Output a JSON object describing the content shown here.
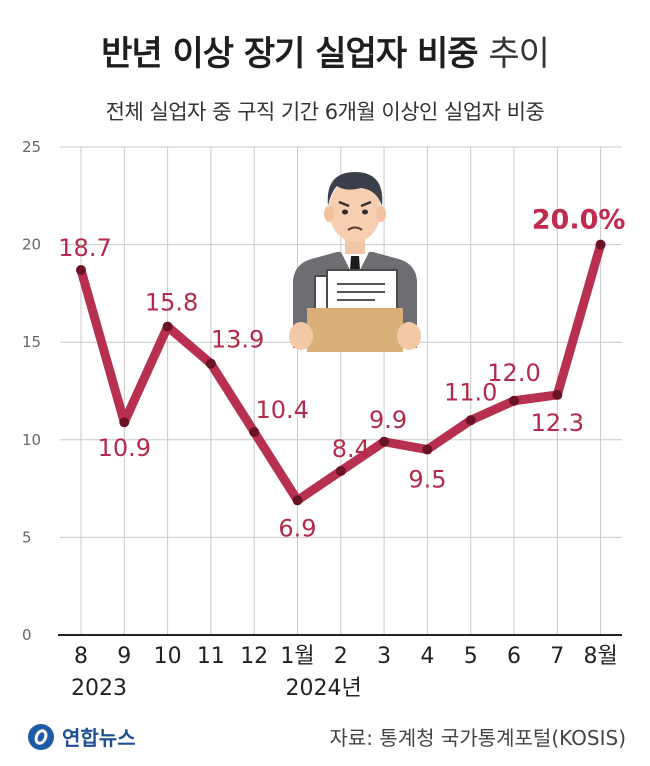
{
  "header": {
    "title_bold": "반년 이상 장기 실업자 비중",
    "title_light": "추이",
    "subtitle": "전체 실업자 중 구직 기간 6개월 이상인 실업자 비중"
  },
  "chart_data": {
    "type": "line",
    "title": "반년 이상 장기 실업자 비중 추이",
    "subtitle": "전체 실업자 중 구직 기간 6개월 이상인 실업자 비중",
    "categories": [
      "8",
      "9",
      "10",
      "11",
      "12",
      "1월",
      "2",
      "3",
      "4",
      "5",
      "6",
      "7",
      "8월"
    ],
    "year_labels": [
      "2023",
      "2024년"
    ],
    "series": [
      {
        "values": [
          18.7,
          10.9,
          15.8,
          13.9,
          10.4,
          6.9,
          8.4,
          9.9,
          9.5,
          11.0,
          12.0,
          12.3,
          20.0
        ],
        "labels": [
          "18.7",
          "10.9",
          "15.8",
          "13.9",
          "10.4",
          "6.9",
          "8.4",
          "9.9",
          "9.5",
          "11.0",
          "12.0",
          "12.3",
          "20.0%"
        ],
        "color": "#b8304f"
      }
    ],
    "yticks": [
      "0",
      "5",
      "10",
      "15",
      "20",
      "25"
    ],
    "ylim": [
      0,
      25
    ],
    "grid": true
  },
  "footer": {
    "logo_text": "연합뉴스",
    "source": "자료: 통계청 국가통계포털(KOSIS)"
  },
  "colors": {
    "line": "#b8304f",
    "marker": "#6a1325",
    "grid": "#c8c8c8"
  }
}
